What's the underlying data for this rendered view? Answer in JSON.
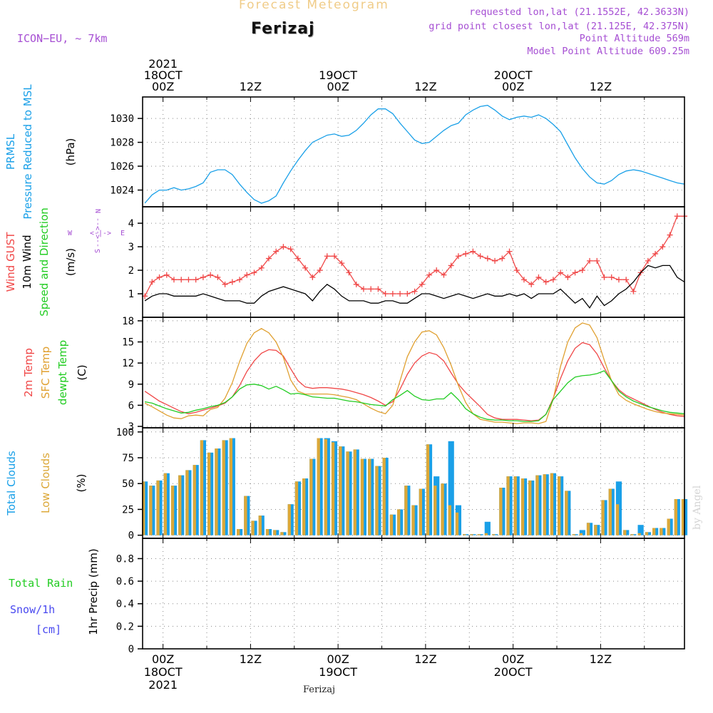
{
  "header": {
    "title": "Forecast Meteogram",
    "location": "Ferizaj",
    "model": "ICON−EU, ~ 7km",
    "info_lines": [
      "requested lon,lat (21.1552E, 42.3633N)",
      "grid point closest lon,lat (21.125E, 42.375N)",
      "Point Altitude 569m",
      "Model Point Altitude 609.25m"
    ],
    "footer_location": "Ferizaj",
    "watermark": "by Angel"
  },
  "time_axis": {
    "hours": [
      0,
      12,
      24,
      36,
      48,
      60
    ],
    "top_labels": [
      [
        "2021",
        "18OCT",
        "00Z"
      ],
      [
        "12Z"
      ],
      [
        "19OCT",
        "00Z"
      ],
      [
        "12Z"
      ],
      [
        "20OCT",
        "00Z"
      ],
      [
        "12Z"
      ]
    ],
    "bottom_labels": [
      [
        "00Z",
        "18OCT",
        "2021"
      ],
      [
        "12Z"
      ],
      [
        "00Z",
        "19OCT"
      ],
      [
        "12Z"
      ],
      [
        "00Z",
        "20OCT"
      ],
      [
        "12Z"
      ]
    ],
    "x_range_hours": [
      -2.8,
      71.5
    ]
  },
  "colors": {
    "pressure": "#1aa0e8",
    "gust": "#f04848",
    "wind": "#000000",
    "temp2m": "#f04848",
    "sfc_temp": "#e0a030",
    "dewpt": "#22cc22",
    "total_clouds": "#1aa0e8",
    "low_clouds": "#dca838",
    "rain": "#22cc22",
    "snow": "#4848f0",
    "purple": "#a64fd3"
  },
  "chart_data": [
    {
      "type": "line",
      "id": "pressure",
      "ylabel_lines": [
        {
          "text": "PRMSL",
          "color": "#1aa0e8"
        },
        {
          "text": "Pressure Reduced to MSL",
          "color": "#1aa0e8"
        },
        {
          "text": "(hPa)",
          "color": "#000000"
        }
      ],
      "yticks": [
        1024,
        1026,
        1028,
        1030
      ],
      "ylim": [
        1022.6,
        1031.8
      ],
      "x": [
        -2.5,
        -1.5,
        -0.5,
        0.5,
        1.5,
        2.5,
        3.5,
        4.5,
        5.5,
        6.5,
        7.5,
        8.5,
        9.5,
        10.5,
        11.5,
        12.5,
        13.5,
        14.5,
        15.5,
        16.5,
        17.5,
        18.5,
        19.5,
        20.5,
        21.5,
        22.5,
        23.5,
        24.5,
        25.5,
        26.5,
        27.5,
        28.5,
        29.5,
        30.5,
        31.5,
        32.5,
        33.5,
        34.5,
        35.5,
        36.5,
        37.5,
        38.5,
        39.5,
        40.5,
        41.5,
        42.5,
        43.5,
        44.5,
        45.5,
        46.5,
        47.5,
        48.5,
        49.5,
        50.5,
        51.5,
        52.5,
        53.5,
        54.5,
        55.5,
        56.5,
        57.5,
        58.5,
        59.5,
        60.5,
        61.5,
        62.5,
        63.5,
        64.5,
        65.5,
        66.5,
        67.5,
        68.5,
        69.5,
        70.5,
        71.5
      ],
      "series": [
        {
          "color": "#1aa0e8",
          "values": [
            1022.9,
            1023.6,
            1024.0,
            1024.0,
            1024.2,
            1024.0,
            1024.1,
            1024.3,
            1024.6,
            1025.5,
            1025.7,
            1025.7,
            1025.3,
            1024.5,
            1023.8,
            1023.2,
            1022.9,
            1023.1,
            1023.5,
            1024.6,
            1025.6,
            1026.5,
            1027.3,
            1028.0,
            1028.3,
            1028.6,
            1028.7,
            1028.5,
            1028.6,
            1029.0,
            1029.6,
            1030.3,
            1030.8,
            1030.8,
            1030.4,
            1029.6,
            1028.9,
            1028.2,
            1027.9,
            1028.0,
            1028.5,
            1029.0,
            1029.4,
            1029.6,
            1030.3,
            1030.7,
            1031.0,
            1031.1,
            1030.7,
            1030.2,
            1029.9,
            1030.1,
            1030.2,
            1030.1,
            1030.3,
            1030.0,
            1029.5,
            1028.9,
            1027.8,
            1026.7,
            1025.8,
            1025.1,
            1024.6,
            1024.5,
            1024.8,
            1025.3,
            1025.6,
            1025.7,
            1025.6,
            1025.4,
            1025.2,
            1025.0,
            1024.8,
            1024.6,
            1024.5
          ]
        }
      ]
    },
    {
      "type": "line",
      "id": "wind",
      "ylabel_lines": [
        {
          "text": "Wind GUST",
          "color": "#f04848"
        },
        {
          "text": "10m Wind",
          "color": "#000000"
        },
        {
          "text": "Speed and Direction",
          "color": "#22cc22"
        },
        {
          "text": "(m/s)",
          "color": "#000000"
        }
      ],
      "compass": [
        "N",
        "W",
        "E",
        "S"
      ],
      "yticks": [
        1,
        2,
        3,
        4
      ],
      "ylim": [
        0,
        4.7
      ],
      "x": [
        -2.5,
        -1.5,
        -0.5,
        0.5,
        1.5,
        2.5,
        3.5,
        4.5,
        5.5,
        6.5,
        7.5,
        8.5,
        9.5,
        10.5,
        11.5,
        12.5,
        13.5,
        14.5,
        15.5,
        16.5,
        17.5,
        18.5,
        19.5,
        20.5,
        21.5,
        22.5,
        23.5,
        24.5,
        25.5,
        26.5,
        27.5,
        28.5,
        29.5,
        30.5,
        31.5,
        32.5,
        33.5,
        34.5,
        35.5,
        36.5,
        37.5,
        38.5,
        39.5,
        40.5,
        41.5,
        42.5,
        43.5,
        44.5,
        45.5,
        46.5,
        47.5,
        48.5,
        49.5,
        50.5,
        51.5,
        52.5,
        53.5,
        54.5,
        55.5,
        56.5,
        57.5,
        58.5,
        59.5,
        60.5,
        61.5,
        62.5,
        63.5,
        64.5,
        65.5,
        66.5,
        67.5,
        68.5,
        69.5,
        70.5,
        71.5
      ],
      "series": [
        {
          "name": "gust",
          "color": "#f04848",
          "marker": "+",
          "values": [
            0.9,
            1.5,
            1.7,
            1.8,
            1.6,
            1.6,
            1.6,
            1.6,
            1.7,
            1.8,
            1.7,
            1.4,
            1.5,
            1.6,
            1.8,
            1.9,
            2.1,
            2.5,
            2.8,
            3.0,
            2.9,
            2.5,
            2.1,
            1.7,
            2.0,
            2.6,
            2.6,
            2.3,
            1.9,
            1.4,
            1.2,
            1.2,
            1.2,
            1.0,
            1.0,
            1.0,
            1.0,
            1.1,
            1.4,
            1.8,
            2.0,
            1.8,
            2.2,
            2.6,
            2.7,
            2.8,
            2.6,
            2.5,
            2.4,
            2.5,
            2.8,
            2.0,
            1.6,
            1.4,
            1.7,
            1.5,
            1.6,
            1.9,
            1.7,
            1.9,
            2.0,
            2.4,
            2.4,
            1.7,
            1.7,
            1.6,
            1.6,
            1.1,
            1.9,
            2.4,
            2.7,
            3.0,
            3.5,
            4.3,
            4.3
          ]
        },
        {
          "name": "wind",
          "color": "#000000",
          "values": [
            0.7,
            0.9,
            1.0,
            1.0,
            0.9,
            0.9,
            0.9,
            0.9,
            1.0,
            0.9,
            0.8,
            0.7,
            0.7,
            0.7,
            0.6,
            0.6,
            0.9,
            1.1,
            1.2,
            1.3,
            1.2,
            1.1,
            1.0,
            0.7,
            1.1,
            1.4,
            1.2,
            0.9,
            0.7,
            0.7,
            0.7,
            0.6,
            0.6,
            0.7,
            0.7,
            0.6,
            0.6,
            0.8,
            1.0,
            1.0,
            0.9,
            0.8,
            0.9,
            1.0,
            0.9,
            0.8,
            0.9,
            1.0,
            0.9,
            0.9,
            1.0,
            0.9,
            1.0,
            0.8,
            1.0,
            1.0,
            1.0,
            1.2,
            0.9,
            0.6,
            0.8,
            0.4,
            0.9,
            0.5,
            0.7,
            1.0,
            1.2,
            1.5,
            1.9,
            2.2,
            2.1,
            2.2,
            2.2,
            1.7,
            1.5
          ]
        }
      ]
    },
    {
      "type": "line",
      "id": "temperature",
      "ylabel_lines": [
        {
          "text": "2m Temp",
          "color": "#f04848"
        },
        {
          "text": "SFC Temp",
          "color": "#e0a030"
        },
        {
          "text": "dewpt Temp",
          "color": "#22cc22"
        },
        {
          "text": "(C)",
          "color": "#000000"
        }
      ],
      "yticks": [
        3,
        6,
        9,
        12,
        15,
        18
      ],
      "ylim": [
        2.8,
        18.5
      ],
      "x": [
        -2.5,
        -1.5,
        -0.5,
        0.5,
        1.5,
        2.5,
        3.5,
        4.5,
        5.5,
        6.5,
        7.5,
        8.5,
        9.5,
        10.5,
        11.5,
        12.5,
        13.5,
        14.5,
        15.5,
        16.5,
        17.5,
        18.5,
        19.5,
        20.5,
        21.5,
        22.5,
        23.5,
        24.5,
        25.5,
        26.5,
        27.5,
        28.5,
        29.5,
        30.5,
        31.5,
        32.5,
        33.5,
        34.5,
        35.5,
        36.5,
        37.5,
        38.5,
        39.5,
        40.5,
        41.5,
        42.5,
        43.5,
        44.5,
        45.5,
        46.5,
        47.5,
        48.5,
        49.5,
        50.5,
        51.5,
        52.5,
        53.5,
        54.5,
        55.5,
        56.5,
        57.5,
        58.5,
        59.5,
        60.5,
        61.5,
        62.5,
        63.5,
        64.5,
        65.5,
        66.5,
        67.5,
        68.5,
        69.5,
        70.5,
        71.5
      ],
      "series": [
        {
          "name": "2m Temp",
          "color": "#f04848",
          "values": [
            8.0,
            7.3,
            6.6,
            6.1,
            5.6,
            5.1,
            4.8,
            5.0,
            5.3,
            5.6,
            5.9,
            6.3,
            7.2,
            8.8,
            10.8,
            12.3,
            13.4,
            13.9,
            13.8,
            13.0,
            11.2,
            9.5,
            8.6,
            8.4,
            8.5,
            8.5,
            8.4,
            8.3,
            8.1,
            7.8,
            7.5,
            7.1,
            6.6,
            6.0,
            6.5,
            8.3,
            10.4,
            12.0,
            13.0,
            13.5,
            13.2,
            12.3,
            10.6,
            9.0,
            7.8,
            6.8,
            5.8,
            4.7,
            4.2,
            4.0,
            4.0,
            4.0,
            3.9,
            3.8,
            3.9,
            4.7,
            7.0,
            9.8,
            12.3,
            14.1,
            14.9,
            14.6,
            13.3,
            11.3,
            9.5,
            8.2,
            7.4,
            6.9,
            6.4,
            5.9,
            5.4,
            5.0,
            4.7,
            4.5,
            4.4
          ]
        },
        {
          "name": "SFC Temp",
          "color": "#e0a030",
          "values": [
            6.3,
            5.8,
            5.2,
            4.6,
            4.2,
            4.1,
            4.5,
            4.6,
            4.5,
            5.4,
            5.7,
            7.0,
            9.2,
            12.2,
            14.8,
            16.3,
            16.9,
            16.3,
            15.0,
            12.8,
            9.6,
            8.0,
            7.6,
            7.6,
            7.6,
            7.6,
            7.5,
            7.3,
            7.1,
            6.8,
            6.2,
            5.6,
            5.1,
            4.8,
            6.0,
            9.5,
            12.9,
            15.0,
            16.4,
            16.6,
            16.0,
            14.2,
            11.7,
            8.8,
            6.4,
            4.8,
            4.0,
            3.8,
            3.6,
            3.6,
            3.5,
            3.4,
            3.5,
            3.5,
            3.4,
            3.7,
            6.9,
            11.5,
            15.0,
            17.0,
            17.7,
            17.4,
            15.6,
            12.4,
            9.5,
            7.5,
            6.7,
            6.2,
            5.8,
            5.4,
            5.1,
            4.9,
            4.8,
            4.7,
            4.6
          ]
        },
        {
          "name": "dewpt Temp",
          "color": "#22cc22",
          "values": [
            6.5,
            6.3,
            5.9,
            5.5,
            5.2,
            4.9,
            5.0,
            5.3,
            5.5,
            5.8,
            6.0,
            6.4,
            7.2,
            8.3,
            8.9,
            9.0,
            8.8,
            8.3,
            8.7,
            8.2,
            7.6,
            7.7,
            7.5,
            7.2,
            7.1,
            7.0,
            7.0,
            6.8,
            6.6,
            6.5,
            6.3,
            6.1,
            6.0,
            5.9,
            6.8,
            7.4,
            8.1,
            7.3,
            6.8,
            6.7,
            6.9,
            6.9,
            7.8,
            6.8,
            5.5,
            4.8,
            4.3,
            4.0,
            3.9,
            3.9,
            3.8,
            3.8,
            3.7,
            3.7,
            3.8,
            4.7,
            6.8,
            8.0,
            9.2,
            10.0,
            10.2,
            10.3,
            10.5,
            10.9,
            9.5,
            8.0,
            7.2,
            6.6,
            6.2,
            5.8,
            5.5,
            5.2,
            5.0,
            4.9,
            4.8
          ]
        }
      ]
    },
    {
      "type": "bar",
      "id": "clouds",
      "ylabel_lines": [
        {
          "text": "Total Clouds",
          "color": "#1aa0e8"
        },
        {
          "text": "Low Clouds",
          "color": "#dca838"
        },
        {
          "text": "(%)",
          "color": "#000000"
        }
      ],
      "yticks": [
        0,
        25,
        50,
        75,
        100
      ],
      "ylim": [
        -3,
        104
      ],
      "x": [
        -2.5,
        -1.5,
        -0.5,
        0.5,
        1.5,
        2.5,
        3.5,
        4.5,
        5.5,
        6.5,
        7.5,
        8.5,
        9.5,
        10.5,
        11.5,
        12.5,
        13.5,
        14.5,
        15.5,
        16.5,
        17.5,
        18.5,
        19.5,
        20.5,
        21.5,
        22.5,
        23.5,
        24.5,
        25.5,
        26.5,
        27.5,
        28.5,
        29.5,
        30.5,
        31.5,
        32.5,
        33.5,
        34.5,
        35.5,
        36.5,
        37.5,
        38.5,
        39.5,
        40.5,
        41.5,
        42.5,
        43.5,
        44.5,
        45.5,
        46.5,
        47.5,
        48.5,
        49.5,
        50.5,
        51.5,
        52.5,
        53.5,
        54.5,
        55.5,
        56.5,
        57.5,
        58.5,
        59.5,
        60.5,
        61.5,
        62.5,
        63.5,
        64.5,
        65.5,
        66.5,
        67.5,
        68.5,
        69.5,
        70.5,
        71.5
      ],
      "series": [
        {
          "name": "Total Clouds",
          "color": "#1aa0e8",
          "values": [
            52,
            48,
            53,
            60,
            48,
            58,
            63,
            68,
            92,
            80,
            84,
            92,
            94,
            6,
            38,
            14,
            19,
            6,
            5,
            3,
            30,
            52,
            55,
            74,
            94,
            94,
            91,
            86,
            81,
            83,
            74,
            74,
            67,
            75,
            20,
            25,
            48,
            29,
            45,
            88,
            57,
            50,
            91,
            29,
            1,
            1,
            1,
            13,
            1,
            46,
            57,
            57,
            55,
            53,
            58,
            59,
            60,
            57,
            43,
            1,
            5,
            12,
            10,
            34,
            45,
            52,
            5,
            1,
            10,
            3,
            7,
            7,
            16,
            35,
            35
          ]
        },
        {
          "name": "Low Clouds",
          "color": "#dca838",
          "values": [
            52,
            48,
            53,
            60,
            48,
            58,
            63,
            68,
            92,
            80,
            84,
            92,
            94,
            6,
            38,
            14,
            19,
            6,
            5,
            3,
            30,
            52,
            55,
            74,
            94,
            93,
            90,
            86,
            81,
            83,
            74,
            74,
            67,
            75,
            20,
            25,
            48,
            29,
            45,
            88,
            48,
            50,
            29,
            22,
            1,
            1,
            1,
            2,
            1,
            46,
            57,
            57,
            55,
            53,
            58,
            59,
            60,
            57,
            43,
            1,
            2,
            12,
            10,
            34,
            45,
            30,
            5,
            1,
            2,
            3,
            7,
            7,
            16,
            35,
            35
          ]
        }
      ]
    },
    {
      "type": "bar",
      "id": "precip",
      "ylabel_lines": [
        {
          "text": "Total Rain",
          "color": "#22cc22"
        },
        {
          "text": "Snow/1h",
          "color": "#4848f0"
        },
        {
          "text": "[cm]",
          "color": "#4848f0"
        },
        {
          "text": "1hr Precip (mm)",
          "color": "#000000"
        }
      ],
      "yticks": [
        0,
        0.2,
        0.4,
        0.6,
        0.8
      ],
      "ylim": [
        0,
        0.98
      ],
      "series": []
    }
  ]
}
